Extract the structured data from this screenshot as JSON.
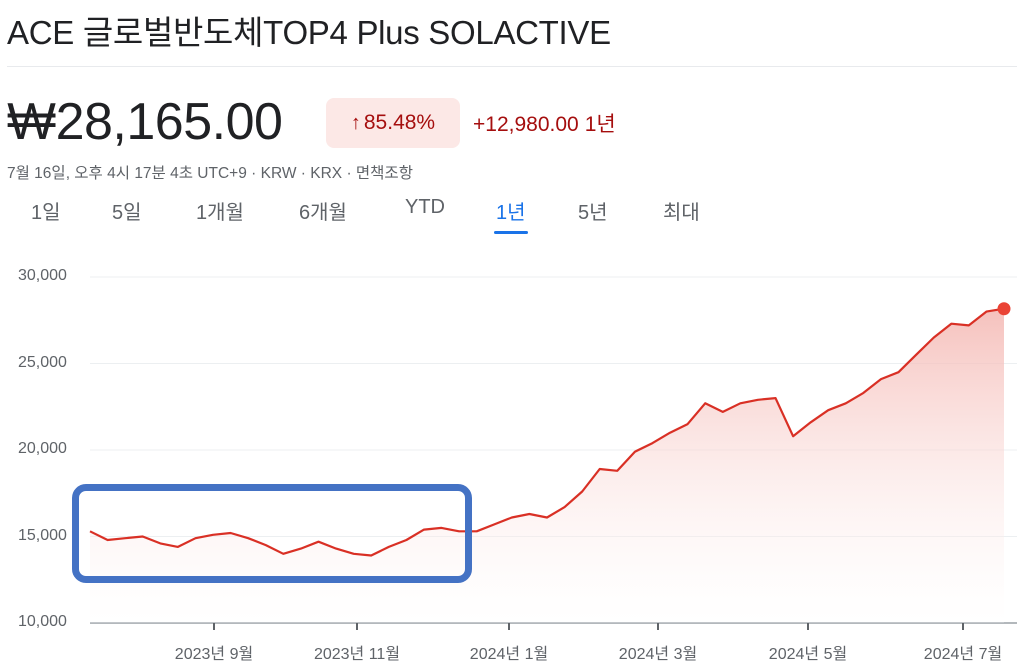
{
  "header": {
    "title": "ACE 글로벌반도체TOP4 Plus SOLACTIVE"
  },
  "quote": {
    "price": "₩28,165.00",
    "change_percent": "85.48%",
    "change_arrow": "arrow-up-icon",
    "change_absolute": "+12,980.00",
    "change_period": "1년",
    "meta": "7월 16일, 오후 4시 17분 4초 UTC+9 · KRW · KRX · 면책조항",
    "change_color": "#a50e0e",
    "badge_bg": "#fce8e6"
  },
  "tabs": [
    {
      "label": "1일",
      "active": false
    },
    {
      "label": "5일",
      "active": false
    },
    {
      "label": "1개월",
      "active": false
    },
    {
      "label": "6개월",
      "active": false
    },
    {
      "label": "YTD",
      "active": false
    },
    {
      "label": "1년",
      "active": true
    },
    {
      "label": "5년",
      "active": false
    },
    {
      "label": "최대",
      "active": false
    }
  ],
  "colors": {
    "line": "#d93025",
    "fill_top": "#f4b6b1",
    "accent": "#1a73e8",
    "highlight_box": "#4472c4"
  },
  "chart_data": {
    "type": "area",
    "title": "ACE 글로벌반도체TOP4 Plus SOLACTIVE — 1년",
    "xlabel": "",
    "ylabel": "",
    "ylim": [
      10000,
      30000
    ],
    "yticks": [
      "30,000",
      "25,000",
      "20,000",
      "15,000",
      "10,000"
    ],
    "ytick_values": [
      30000,
      25000,
      20000,
      15000,
      10000
    ],
    "xticks": [
      "2023년 9월",
      "2023년 11월",
      "2024년 1월",
      "2024년 3월",
      "2024년 5월",
      "2024년 7월"
    ],
    "grid": true,
    "legend": "none",
    "last_value": 28165,
    "annotation": "blue rounded rectangle highlighting 2023-07 to 2023-12 sideways range (~14,000–15,500)",
    "x": [
      "2023-07-17",
      "2023-07-24",
      "2023-07-31",
      "2023-08-07",
      "2023-08-14",
      "2023-08-21",
      "2023-08-28",
      "2023-09-04",
      "2023-09-11",
      "2023-09-18",
      "2023-09-25",
      "2023-10-02",
      "2023-10-09",
      "2023-10-16",
      "2023-10-23",
      "2023-10-30",
      "2023-11-06",
      "2023-11-13",
      "2023-11-20",
      "2023-11-27",
      "2023-12-04",
      "2023-12-11",
      "2023-12-18",
      "2023-12-26",
      "2024-01-02",
      "2024-01-08",
      "2024-01-15",
      "2024-01-22",
      "2024-01-29",
      "2024-02-05",
      "2024-02-13",
      "2024-02-19",
      "2024-02-26",
      "2024-03-04",
      "2024-03-11",
      "2024-03-18",
      "2024-03-25",
      "2024-04-01",
      "2024-04-08",
      "2024-04-15",
      "2024-04-22",
      "2024-04-29",
      "2024-05-06",
      "2024-05-13",
      "2024-05-20",
      "2024-05-27",
      "2024-06-03",
      "2024-06-10",
      "2024-06-17",
      "2024-06-24",
      "2024-07-01",
      "2024-07-08",
      "2024-07-16"
    ],
    "values": [
      15300,
      14800,
      14900,
      15000,
      14600,
      14400,
      14900,
      15100,
      15200,
      14900,
      14500,
      14000,
      14300,
      14700,
      14300,
      14000,
      13900,
      14400,
      14800,
      15400,
      15500,
      15300,
      15300,
      15700,
      16100,
      16300,
      16100,
      16700,
      17600,
      18900,
      18800,
      19900,
      20400,
      21000,
      21500,
      22700,
      22200,
      22700,
      22900,
      23000,
      20800,
      21600,
      22300,
      22700,
      23300,
      24100,
      24500,
      25500,
      26500,
      27300,
      27200,
      28000,
      28165
    ],
    "series": [
      {
        "name": "KRW",
        "color": "#d93025"
      }
    ]
  }
}
